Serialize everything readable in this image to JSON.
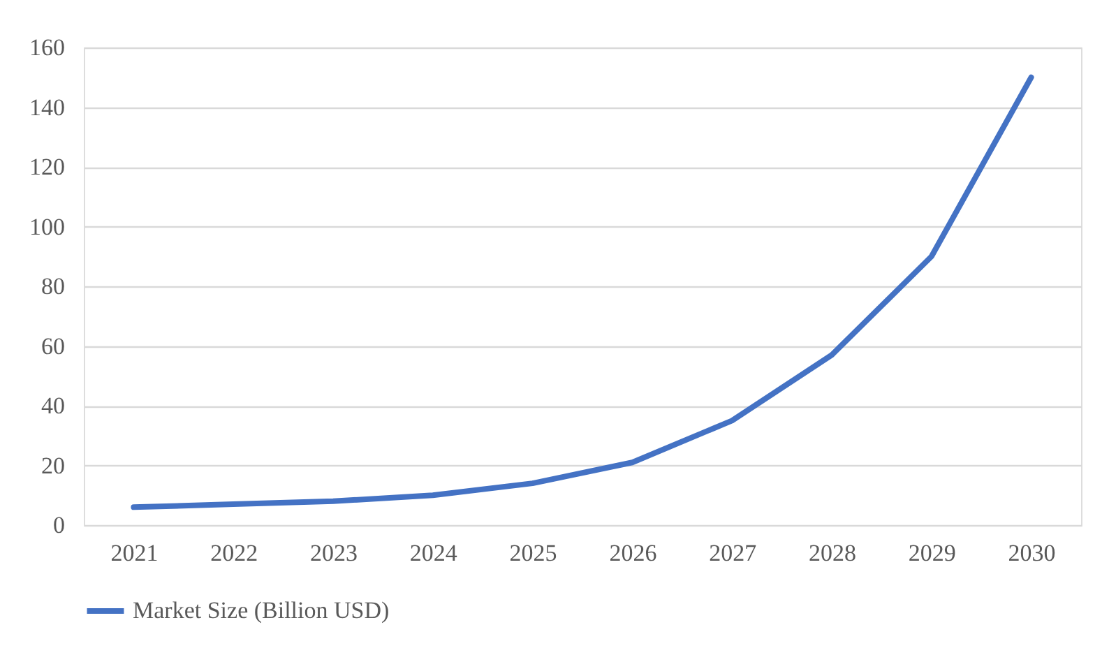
{
  "chart_data": {
    "type": "line",
    "categories": [
      "2021",
      "2022",
      "2023",
      "2024",
      "2025",
      "2026",
      "2027",
      "2028",
      "2029",
      "2030"
    ],
    "series": [
      {
        "name": "Market Size (Billion USD)",
        "color": "#4472c4",
        "values": [
          6,
          7,
          8,
          10,
          14,
          21,
          35,
          57,
          90,
          150
        ]
      }
    ],
    "ylim": [
      0,
      160
    ],
    "yticks": [
      0,
      20,
      40,
      60,
      80,
      100,
      120,
      140,
      160
    ],
    "grid": "y",
    "legend": "bottom",
    "marker": "none",
    "line_style": "solid"
  }
}
